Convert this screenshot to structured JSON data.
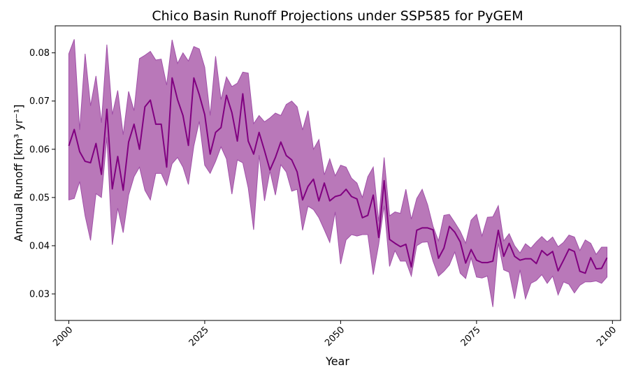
{
  "chart_data": {
    "type": "area",
    "title": "Chico Basin Runoff Projections under SSP585 for PyGEM",
    "xlabel": "Year",
    "ylabel": "Annual Runoff [km³ yr⁻¹]",
    "xlim": [
      1997.5,
      2101.5
    ],
    "ylim": [
      0.0245,
      0.0856
    ],
    "x_ticks": [
      2000,
      2025,
      2050,
      2075,
      2100
    ],
    "y_ticks": [
      0.03,
      0.04,
      0.05,
      0.06,
      0.07,
      0.08
    ],
    "grid": false,
    "legend": "none",
    "colors": {
      "line": "#800080",
      "band": "#b978b9",
      "band_edge": "#a050a8"
    },
    "x": [
      2000,
      2001,
      2002,
      2003,
      2004,
      2005,
      2006,
      2007,
      2008,
      2009,
      2010,
      2011,
      2012,
      2013,
      2014,
      2015,
      2016,
      2017,
      2018,
      2019,
      2020,
      2021,
      2022,
      2023,
      2024,
      2025,
      2026,
      2027,
      2028,
      2029,
      2030,
      2031,
      2032,
      2033,
      2034,
      2035,
      2036,
      2037,
      2038,
      2039,
      2040,
      2041,
      2042,
      2043,
      2044,
      2045,
      2046,
      2047,
      2048,
      2049,
      2050,
      2051,
      2052,
      2053,
      2054,
      2055,
      2056,
      2057,
      2058,
      2059,
      2060,
      2061,
      2062,
      2063,
      2064,
      2065,
      2066,
      2067,
      2068,
      2069,
      2070,
      2071,
      2072,
      2073,
      2074,
      2075,
      2076,
      2077,
      2078,
      2079,
      2080,
      2081,
      2082,
      2083,
      2084,
      2085,
      2086,
      2087,
      2088,
      2089,
      2090,
      2091,
      2092,
      2093,
      2094,
      2095,
      2096,
      2097,
      2098,
      2099
    ],
    "series": [
      {
        "role": "median",
        "values": [
          0.0607,
          0.0641,
          0.0595,
          0.0575,
          0.0572,
          0.0612,
          0.0548,
          0.0683,
          0.0518,
          0.0585,
          0.0515,
          0.0615,
          0.0652,
          0.06,
          0.0688,
          0.0702,
          0.0652,
          0.0652,
          0.0563,
          0.0748,
          0.0703,
          0.067,
          0.0608,
          0.0748,
          0.0713,
          0.0672,
          0.059,
          0.0635,
          0.0645,
          0.0712,
          0.0676,
          0.0617,
          0.0715,
          0.0617,
          0.059,
          0.0635,
          0.0597,
          0.0557,
          0.0583,
          0.0615,
          0.0587,
          0.0578,
          0.0553,
          0.0495,
          0.0523,
          0.0538,
          0.0493,
          0.053,
          0.0493,
          0.0502,
          0.0505,
          0.0517,
          0.0502,
          0.0497,
          0.0458,
          0.0463,
          0.0505,
          0.0417,
          0.0535,
          0.0413,
          0.0405,
          0.0398,
          0.0403,
          0.0356,
          0.0432,
          0.0437,
          0.0437,
          0.0433,
          0.0374,
          0.0395,
          0.044,
          0.0428,
          0.0408,
          0.0364,
          0.0392,
          0.037,
          0.0365,
          0.0365,
          0.0368,
          0.0432,
          0.0378,
          0.0405,
          0.0378,
          0.037,
          0.0373,
          0.0373,
          0.0363,
          0.039,
          0.038,
          0.0388,
          0.0348,
          0.037,
          0.0393,
          0.0388,
          0.0347,
          0.0343,
          0.0375,
          0.0352,
          0.0353,
          0.0375
        ]
      },
      {
        "role": "upper",
        "values": [
          0.0798,
          0.0828,
          0.064,
          0.0798,
          0.069,
          0.0752,
          0.0655,
          0.0817,
          0.0672,
          0.0722,
          0.063,
          0.072,
          0.068,
          0.0788,
          0.0795,
          0.0803,
          0.0785,
          0.0787,
          0.0733,
          0.0827,
          0.0778,
          0.08,
          0.0783,
          0.0813,
          0.0808,
          0.077,
          0.067,
          0.0793,
          0.0703,
          0.075,
          0.073,
          0.0737,
          0.076,
          0.0758,
          0.0653,
          0.067,
          0.0657,
          0.0665,
          0.0675,
          0.067,
          0.0693,
          0.07,
          0.0688,
          0.064,
          0.068,
          0.06,
          0.062,
          0.0547,
          0.058,
          0.0545,
          0.0567,
          0.0563,
          0.054,
          0.053,
          0.05,
          0.0543,
          0.0563,
          0.045,
          0.0583,
          0.0462,
          0.047,
          0.0467,
          0.0517,
          0.0455,
          0.0498,
          0.0517,
          0.0485,
          0.044,
          0.041,
          0.0463,
          0.0465,
          0.0448,
          0.043,
          0.0405,
          0.0453,
          0.0465,
          0.042,
          0.0459,
          0.046,
          0.0483,
          0.041,
          0.0425,
          0.04,
          0.0385,
          0.0404,
          0.0395,
          0.0408,
          0.0419,
          0.0408,
          0.0418,
          0.0398,
          0.0407,
          0.0422,
          0.0418,
          0.039,
          0.0412,
          0.0405,
          0.0382,
          0.0397,
          0.0397
        ]
      },
      {
        "role": "lower",
        "values": [
          0.0495,
          0.0498,
          0.0533,
          0.0462,
          0.0411,
          0.0508,
          0.05,
          0.0625,
          0.0402,
          0.0478,
          0.0427,
          0.0505,
          0.0543,
          0.0563,
          0.0515,
          0.0495,
          0.055,
          0.055,
          0.0525,
          0.057,
          0.0583,
          0.0563,
          0.0527,
          0.0607,
          0.0658,
          0.0567,
          0.055,
          0.0575,
          0.0605,
          0.058,
          0.0507,
          0.0578,
          0.0572,
          0.052,
          0.0433,
          0.0588,
          0.0493,
          0.0555,
          0.0505,
          0.0568,
          0.0553,
          0.0513,
          0.0517,
          0.0432,
          0.0482,
          0.0475,
          0.0458,
          0.0433,
          0.0407,
          0.047,
          0.0362,
          0.0412,
          0.0423,
          0.042,
          0.0423,
          0.0423,
          0.034,
          0.0403,
          0.0483,
          0.0357,
          0.039,
          0.0368,
          0.0368,
          0.0337,
          0.04,
          0.0407,
          0.0408,
          0.0368,
          0.0337,
          0.0347,
          0.036,
          0.0387,
          0.0343,
          0.0332,
          0.0375,
          0.0335,
          0.0333,
          0.0337,
          0.0273,
          0.0405,
          0.035,
          0.0345,
          0.029,
          0.035,
          0.029,
          0.0322,
          0.0328,
          0.034,
          0.0322,
          0.0337,
          0.0298,
          0.0325,
          0.032,
          0.0302,
          0.0318,
          0.0325,
          0.0325,
          0.0327,
          0.0322,
          0.0335
        ]
      }
    ]
  }
}
